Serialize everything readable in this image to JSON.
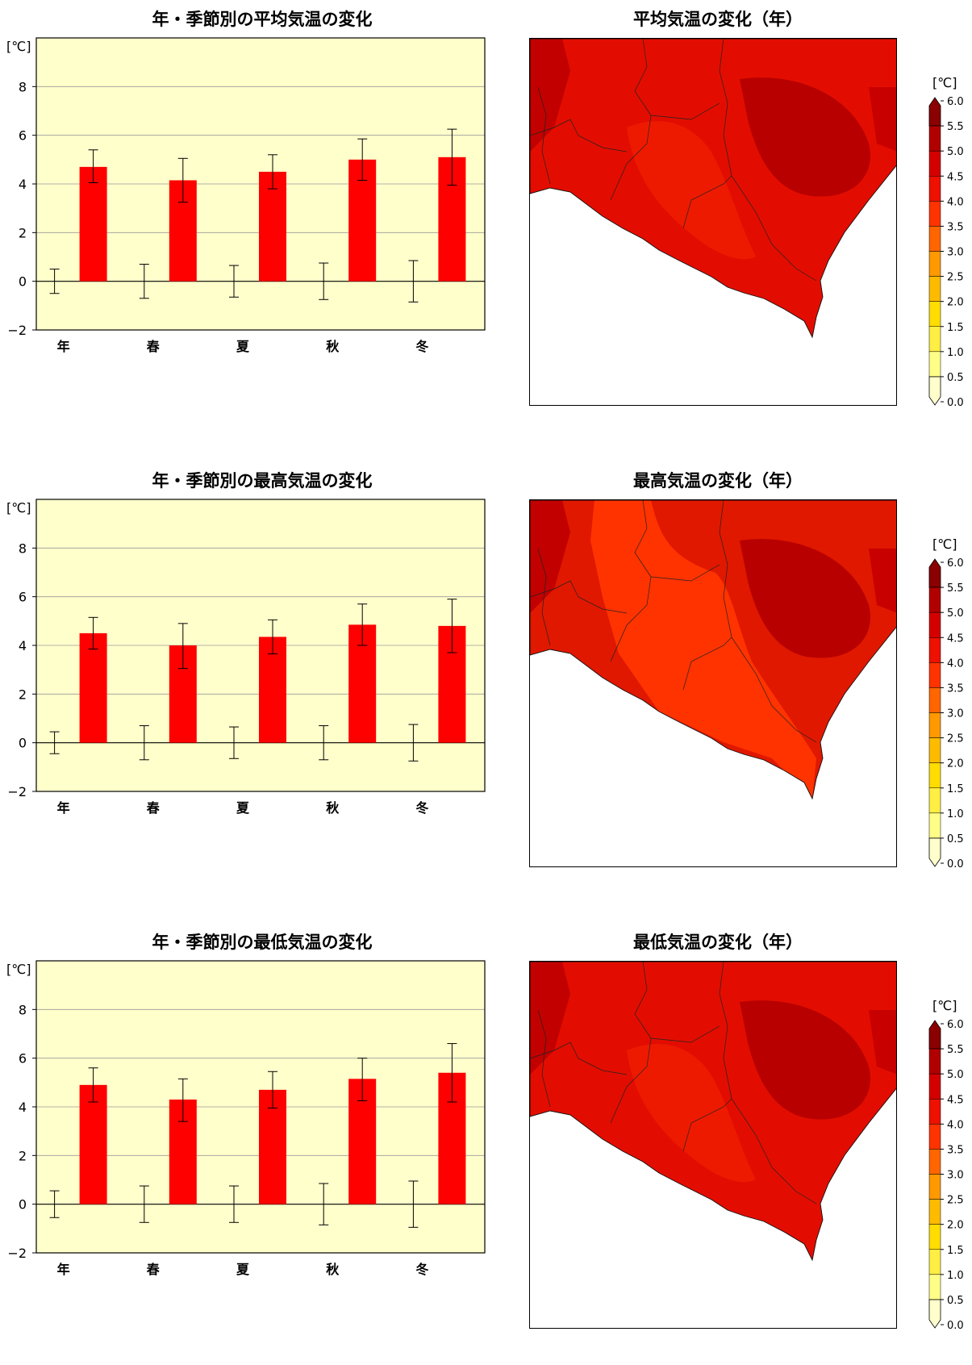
{
  "colorbar": {
    "unit": "[℃]",
    "ticks": [
      "6.0",
      "5.5",
      "5.0",
      "4.5",
      "4.0",
      "3.5",
      "3.0",
      "2.5",
      "2.0",
      "1.5",
      "1.0",
      "0.5",
      "0.0"
    ],
    "colors": [
      "#8b0000",
      "#b00000",
      "#d40000",
      "#ee1100",
      "#ff3300",
      "#ff6600",
      "#ff9900",
      "#ffbb00",
      "#ffdd00",
      "#ffee44",
      "#ffff88",
      "#ffffcc"
    ]
  },
  "panels": [
    {
      "bar_title": "年・季節別の平均気温の変化",
      "map_title": "平均気温の変化（年）"
    },
    {
      "bar_title": "年・季節別の最高気温の変化",
      "map_title": "最高気温の変化（年）"
    },
    {
      "bar_title": "年・季節別の最低気温の変化",
      "map_title": "最低気温の変化（年）"
    }
  ],
  "chart_data": [
    {
      "type": "bar",
      "title": "年・季節別の平均気温の変化",
      "ylabel": "[℃]",
      "ylim": [
        -2,
        10
      ],
      "yticks": [
        -2,
        0,
        2,
        4,
        6,
        8
      ],
      "categories": [
        "年",
        "春",
        "夏",
        "秋",
        "冬"
      ],
      "values": [
        4.7,
        4.15,
        4.5,
        5.0,
        5.1
      ],
      "error": [
        [
          4.05,
          5.4
        ],
        [
          3.25,
          5.05
        ],
        [
          3.8,
          5.2
        ],
        [
          4.15,
          5.85
        ],
        [
          3.95,
          6.25
        ]
      ],
      "baseline_error": [
        [
          -0.5,
          0.5
        ],
        [
          -0.7,
          0.7
        ],
        [
          -0.65,
          0.65
        ],
        [
          -0.75,
          0.75
        ],
        [
          -0.85,
          0.85
        ]
      ],
      "grid": true
    },
    {
      "type": "bar",
      "title": "年・季節別の最高気温の変化",
      "ylabel": "[℃]",
      "ylim": [
        -2,
        10
      ],
      "yticks": [
        -2,
        0,
        2,
        4,
        6,
        8
      ],
      "categories": [
        "年",
        "春",
        "夏",
        "秋",
        "冬"
      ],
      "values": [
        4.5,
        4.0,
        4.35,
        4.85,
        4.8
      ],
      "error": [
        [
          3.85,
          5.15
        ],
        [
          3.05,
          4.9
        ],
        [
          3.65,
          5.05
        ],
        [
          4.0,
          5.7
        ],
        [
          3.7,
          5.9
        ]
      ],
      "baseline_error": [
        [
          -0.45,
          0.45
        ],
        [
          -0.7,
          0.7
        ],
        [
          -0.65,
          0.65
        ],
        [
          -0.7,
          0.7
        ],
        [
          -0.75,
          0.75
        ]
      ],
      "grid": true
    },
    {
      "type": "bar",
      "title": "年・季節別の最低気温の変化",
      "ylabel": "[℃]",
      "ylim": [
        -2,
        10
      ],
      "yticks": [
        -2,
        0,
        2,
        4,
        6,
        8
      ],
      "categories": [
        "年",
        "春",
        "夏",
        "秋",
        "冬"
      ],
      "values": [
        4.9,
        4.3,
        4.7,
        5.15,
        5.4
      ],
      "error": [
        [
          4.2,
          5.6
        ],
        [
          3.4,
          5.15
        ],
        [
          3.95,
          5.45
        ],
        [
          4.25,
          6.0
        ],
        [
          4.2,
          6.6
        ]
      ],
      "baseline_error": [
        [
          -0.55,
          0.55
        ],
        [
          -0.75,
          0.75
        ],
        [
          -0.75,
          0.75
        ],
        [
          -0.85,
          0.85
        ],
        [
          -0.95,
          0.95
        ]
      ],
      "grid": true
    }
  ]
}
